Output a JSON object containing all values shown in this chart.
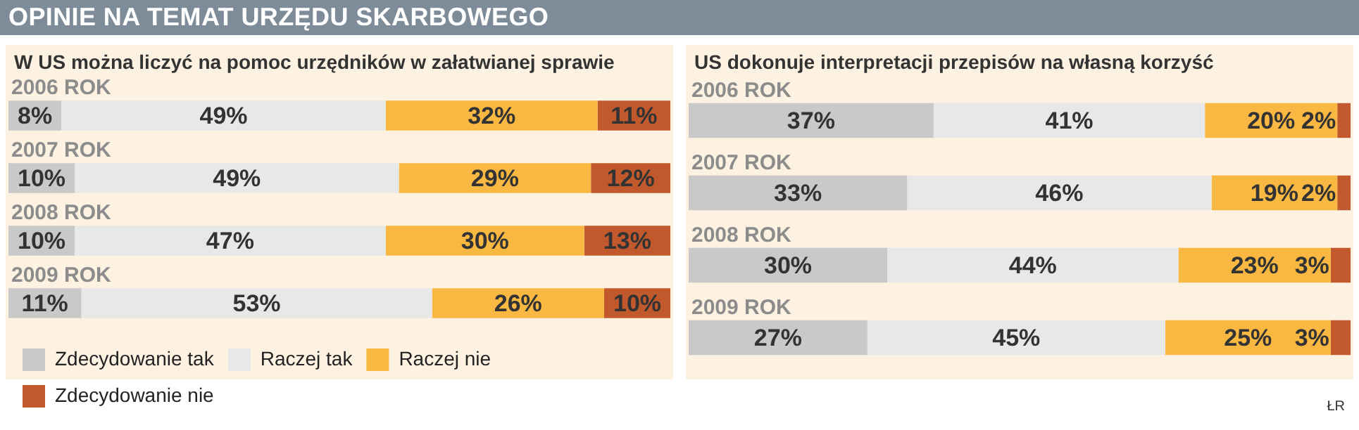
{
  "chart_data": [
    {
      "type": "bar",
      "title": "OPINIE NA TEMAT URZĘDU SKARBOWEGO",
      "subtitle": "W US można liczyć na pomoc urzędników w załatwianej sprawie",
      "orientation": "horizontal",
      "stacked": true,
      "legend": "bottom left",
      "tick_labels": "y",
      "categories": [
        "2006 ROK",
        "2007 ROK",
        "2008 ROK",
        "2009 ROK"
      ],
      "series": [
        {
          "name": "Zdecydowanie tak",
          "color": "#c9c9c9",
          "values": [
            8,
            10,
            10,
            11
          ],
          "value_labels": [
            "8%",
            "10%",
            "10%",
            "11%"
          ]
        },
        {
          "name": "Raczej tak",
          "color": "#e8e8e8",
          "values": [
            49,
            49,
            47,
            53
          ],
          "value_labels": [
            "49%",
            "49%",
            "47%",
            "53%"
          ]
        },
        {
          "name": "Raczej nie",
          "color": "#f9b842",
          "values": [
            32,
            29,
            30,
            26
          ],
          "value_labels": [
            "32%",
            "29%",
            "30%",
            "26%"
          ]
        },
        {
          "name": "Zdecydowanie nie",
          "color": "#c2592d",
          "values": [
            11,
            12,
            13,
            10
          ],
          "value_labels": [
            "11%",
            "12%",
            "13%",
            "10%"
          ]
        }
      ]
    },
    {
      "type": "bar",
      "subtitle": "US dokonuje interpretacji przepisów  na własną korzyść",
      "orientation": "horizontal",
      "stacked": true,
      "tick_labels": "y",
      "annotations": [
        "ŁR"
      ],
      "categories": [
        "2006 ROK",
        "2007 ROK",
        "2008 ROK",
        "2009 ROK"
      ],
      "series": [
        {
          "color": "#c9c9c9",
          "values": [
            37,
            33,
            30,
            27
          ],
          "value_labels": [
            "37%",
            "33%",
            "30%",
            "27%"
          ]
        },
        {
          "color": "#e8e8e8",
          "values": [
            41,
            46,
            44,
            45
          ],
          "value_labels": [
            "41%",
            "46%",
            "44%",
            "45%"
          ]
        },
        {
          "color": "#f9b842",
          "values": [
            20,
            19,
            23,
            25
          ],
          "value_labels": [
            "20%",
            "19%",
            "23%",
            "25%"
          ]
        },
        {
          "color": "#c2592d",
          "values": [
            2,
            2,
            3,
            3
          ],
          "value_labels": [
            "2%",
            "2%",
            "3%",
            "3%"
          ]
        }
      ]
    }
  ]
}
